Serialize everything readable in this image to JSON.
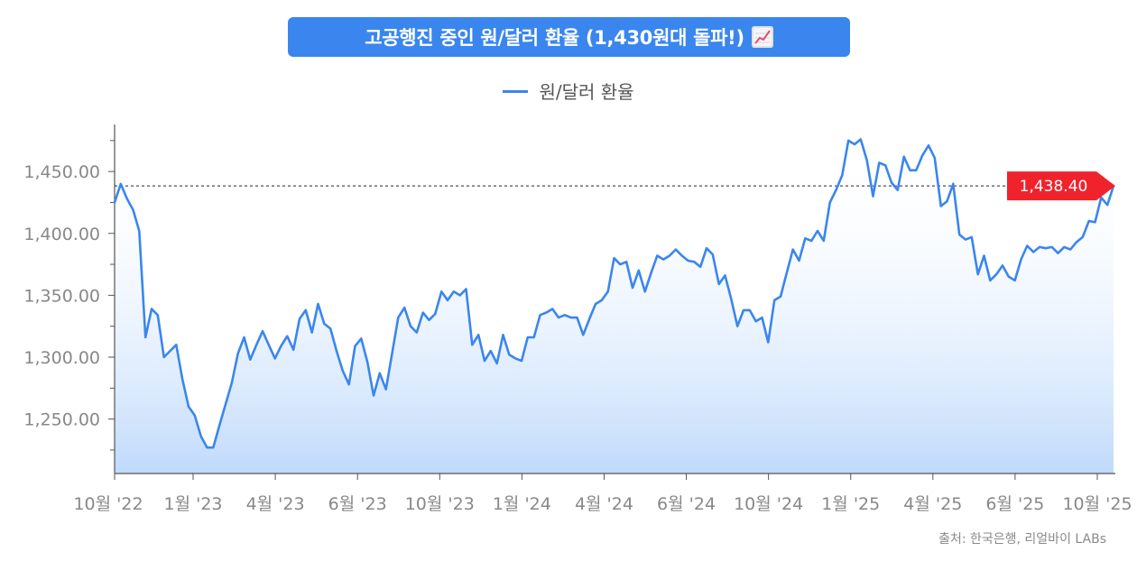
{
  "title": "고공행진 중인 원/달러 환율 (1,430원대 돌파!)",
  "title_icon": "chart-increasing-icon",
  "source": "출처: 한국은행, 리얼바이 LABs",
  "colors": {
    "line": "#3a86ee",
    "title_bg": "#3a86ee",
    "badge": "#f0232c",
    "axis": "#555555",
    "tick_text": "#888888"
  },
  "chart_data": {
    "type": "area",
    "series": [
      {
        "name": "원/달러 환율",
        "x_start": "2022-10",
        "x_end": "2025-10",
        "values": [
          1425,
          1440,
          1428,
          1419,
          1402,
          1316,
          1339,
          1334,
          1300,
          1305,
          1310,
          1282,
          1260,
          1253,
          1236,
          1227,
          1227,
          1245,
          1262,
          1279,
          1303,
          1316,
          1298,
          1310,
          1321,
          1310,
          1299,
          1309,
          1317,
          1306,
          1331,
          1338,
          1320,
          1343,
          1327,
          1323,
          1305,
          1289,
          1278,
          1309,
          1315,
          1296,
          1269,
          1287,
          1274,
          1303,
          1332,
          1340,
          1325,
          1320,
          1336,
          1330,
          1335,
          1353,
          1346,
          1353,
          1350,
          1355,
          1310,
          1318,
          1297,
          1305,
          1295,
          1318,
          1302,
          1299,
          1297,
          1316,
          1316,
          1334,
          1336,
          1339,
          1332,
          1334,
          1332,
          1332,
          1318,
          1331,
          1343,
          1346,
          1353,
          1380,
          1375,
          1377,
          1356,
          1370,
          1353,
          1368,
          1382,
          1379,
          1382,
          1387,
          1382,
          1378,
          1377,
          1373,
          1388,
          1383,
          1359,
          1366,
          1347,
          1325,
          1338,
          1338,
          1329,
          1332,
          1312,
          1346,
          1349,
          1368,
          1387,
          1378,
          1396,
          1394,
          1402,
          1394,
          1425,
          1435,
          1447,
          1475,
          1472,
          1476,
          1459,
          1430,
          1457,
          1455,
          1441,
          1435,
          1462,
          1451,
          1451,
          1463,
          1471,
          1461,
          1422,
          1426,
          1440,
          1399,
          1395,
          1397,
          1367,
          1382,
          1362,
          1367,
          1374,
          1365,
          1362,
          1379,
          1390,
          1385,
          1389,
          1388,
          1389,
          1384,
          1389,
          1387,
          1393,
          1397,
          1410,
          1409,
          1429,
          1423,
          1438.4
        ]
      }
    ],
    "x_ticks": [
      "10월 '22",
      "1월 '23",
      "4월 '23",
      "6월 '23",
      "10월 '23",
      "1월 '24",
      "4월 '24",
      "6월 '24",
      "10월 '24",
      "1월 '25",
      "4월 '25",
      "6월 '25",
      "10월 '25"
    ],
    "y_ticks": [
      "1,250.00",
      "1,300.00",
      "1,350.00",
      "1,400.00",
      "1,450.00"
    ],
    "y_tick_values": [
      1250,
      1300,
      1350,
      1400,
      1450
    ],
    "ylim": [
      1206,
      1488
    ],
    "reference_line": {
      "value": 1438.4,
      "label": "1,438.40",
      "style": "dashed"
    },
    "grid": false,
    "legend": "top-center"
  }
}
